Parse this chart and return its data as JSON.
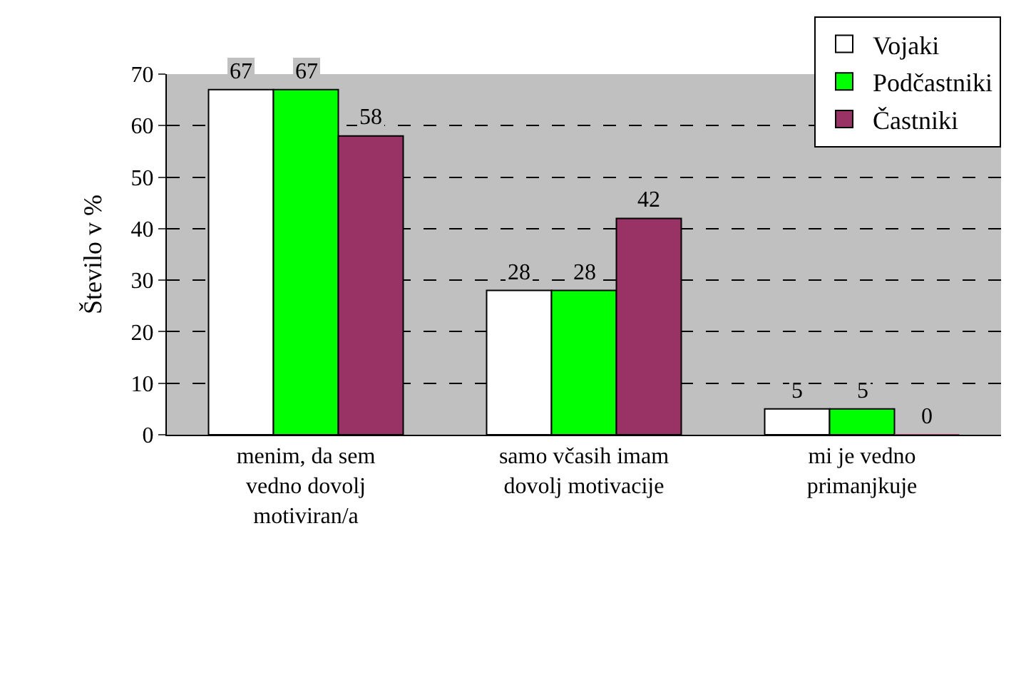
{
  "chart_data": {
    "type": "bar",
    "ylabel": "Število v %",
    "categories": [
      "menim, da sem vedno dovolj motiviran/a",
      "samo včasih imam dovolj motivacije",
      "mi je vedno primanjkuje"
    ],
    "series": [
      {
        "name": "Vojaki",
        "color": "#ffffff",
        "values": [
          67,
          28,
          5
        ]
      },
      {
        "name": "Podčastniki",
        "color": "#00ff00",
        "values": [
          67,
          28,
          5
        ]
      },
      {
        "name": "Častniki",
        "color": "#993366",
        "values": [
          58,
          42,
          0
        ]
      }
    ],
    "ylim": [
      0,
      70
    ],
    "yticks": [
      0,
      10,
      20,
      30,
      40,
      50,
      60,
      70
    ],
    "grid": "y",
    "legend": "top right",
    "data_labels": true
  }
}
